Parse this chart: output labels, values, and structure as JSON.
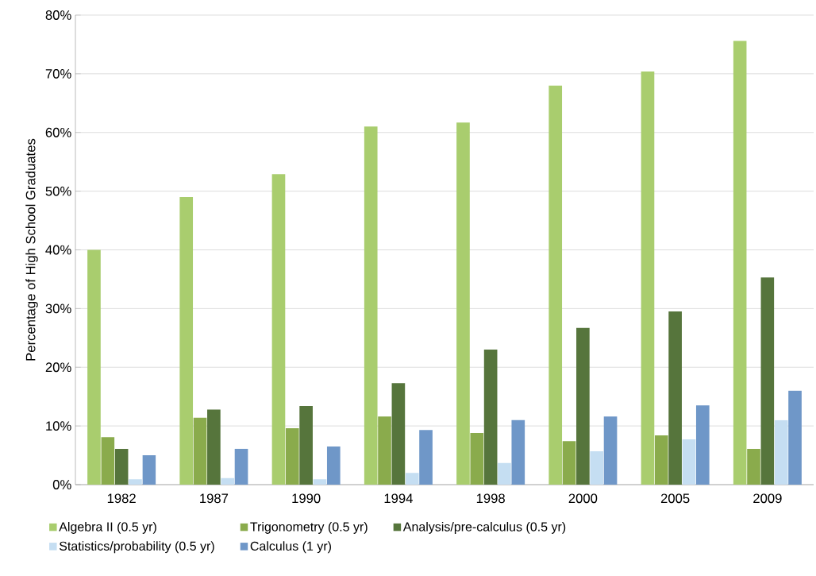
{
  "chart_data": {
    "type": "bar",
    "ylabel": "Percentage of High School Graduates",
    "categories": [
      "1982",
      "1987",
      "1990",
      "1994",
      "1998",
      "2000",
      "2005",
      "2009"
    ],
    "series": [
      {
        "name": "Algebra II (0.5 yr)",
        "color": "#a9cd6e",
        "values": [
          40,
          49,
          52.9,
          61,
          61.7,
          68,
          70.4,
          75.6
        ]
      },
      {
        "name": "Trigonometry (0.5 yr)",
        "color": "#8aab4c",
        "values": [
          8.1,
          11.4,
          9.6,
          11.6,
          8.8,
          7.4,
          8.4,
          6.1
        ]
      },
      {
        "name": "Analysis/pre-calculus (0.5 yr)",
        "color": "#56753c",
        "values": [
          6.1,
          12.8,
          13.4,
          17.3,
          23,
          26.7,
          29.5,
          35.3
        ]
      },
      {
        "name": "Statistics/probability (0.5 yr)",
        "color": "#c5def2",
        "values": [
          0.9,
          1.1,
          0.9,
          2,
          3.7,
          5.7,
          7.7,
          11
        ]
      },
      {
        "name": "Calculus (1 yr)",
        "color": "#6f97c8",
        "values": [
          5,
          6.1,
          6.5,
          9.3,
          11,
          11.6,
          13.5,
          16
        ]
      }
    ],
    "ylim": [
      0,
      80
    ],
    "yticks": [
      {
        "value": 0,
        "label": "0%"
      },
      {
        "value": 10,
        "label": "10%"
      },
      {
        "value": 20,
        "label": "20%"
      },
      {
        "value": 30,
        "label": "30%"
      },
      {
        "value": 40,
        "label": "40%"
      },
      {
        "value": 50,
        "label": "50%"
      },
      {
        "value": 60,
        "label": "60%"
      },
      {
        "value": 70,
        "label": "70%"
      },
      {
        "value": 80,
        "label": "80%"
      }
    ],
    "grid": "y",
    "legend": "bottom"
  }
}
